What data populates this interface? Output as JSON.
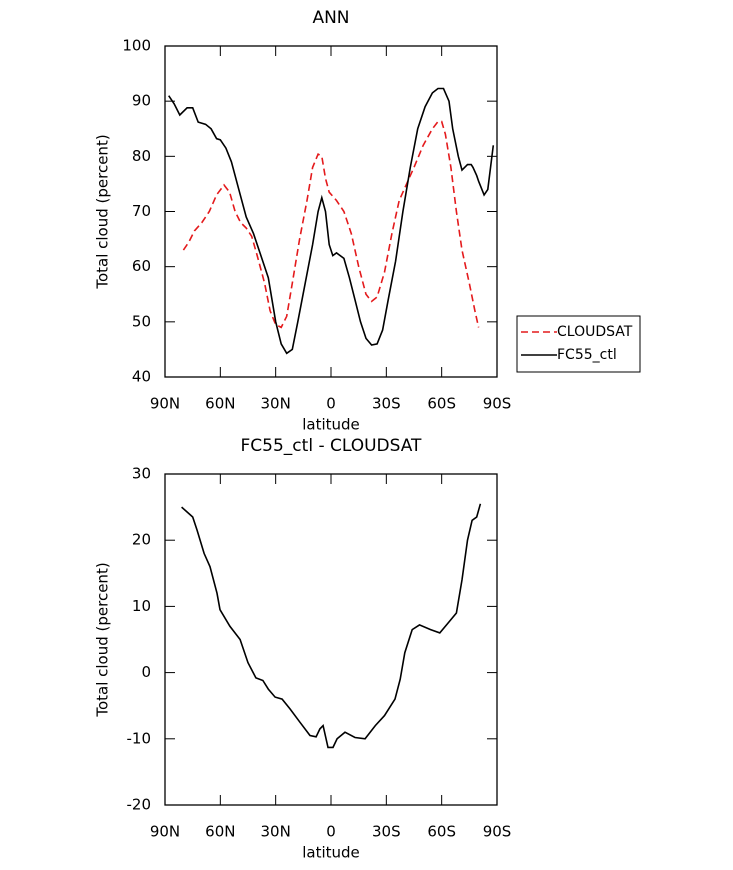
{
  "chart_data": [
    {
      "type": "line",
      "title": "ANN",
      "xlabel": "latitude",
      "ylabel": "Total cloud (percent)",
      "xlim": [
        90,
        -90
      ],
      "xticks": [
        {
          "value": 90,
          "label": "90N"
        },
        {
          "value": 60,
          "label": "60N"
        },
        {
          "value": 30,
          "label": "30N"
        },
        0,
        {
          "value": -30,
          "label": "30S"
        },
        {
          "value": -60,
          "label": "60S"
        },
        {
          "value": -90,
          "label": "90S"
        }
      ],
      "ylim": [
        40,
        100
      ],
      "yticks": [
        40,
        50,
        60,
        70,
        80,
        90,
        100
      ],
      "legend": "outside right",
      "series": [
        {
          "name": "CLOUDSAT",
          "color": "#e41a1c",
          "style": "dashed",
          "x": [
            80,
            77,
            74,
            70,
            66,
            62,
            58,
            55,
            52,
            49,
            46,
            43,
            40,
            36,
            33,
            30,
            27,
            24,
            21,
            17,
            13,
            10,
            7,
            5,
            3,
            1,
            -3,
            -7,
            -11,
            -15,
            -19,
            -22,
            -25,
            -29,
            -33,
            -37,
            -41,
            -45,
            -50,
            -55,
            -58,
            -60,
            -62,
            -65,
            -68,
            -71,
            -75,
            -78,
            -80
          ],
          "values": [
            63,
            64.5,
            66.5,
            68,
            70,
            73,
            74.8,
            73.5,
            70,
            68,
            67,
            65.5,
            62,
            57,
            52,
            49.5,
            49,
            51,
            57,
            65,
            72,
            78,
            80.4,
            80,
            76,
            73.5,
            72,
            70,
            66,
            60,
            55,
            53.7,
            54.5,
            59,
            66,
            72,
            75,
            78,
            82,
            85,
            86.3,
            86.3,
            84,
            78,
            70,
            63,
            57,
            52,
            49
          ]
        },
        {
          "name": "FC55_ctl",
          "color": "#000000",
          "style": "solid",
          "x": [
            88,
            85,
            82,
            78,
            75,
            72,
            68,
            65,
            62,
            60,
            57,
            54,
            50,
            46,
            42,
            38,
            34,
            30,
            27,
            24,
            21,
            18,
            14,
            10,
            7,
            5,
            3,
            1,
            -1,
            -3,
            -7,
            -10,
            -13,
            -16,
            -19,
            -22,
            -25,
            -28,
            -31,
            -35,
            -39,
            -43,
            -47,
            -51,
            -55,
            -58,
            -61,
            -64,
            -66,
            -69,
            -71,
            -74,
            -76,
            -77,
            -79,
            -80,
            -83,
            -85,
            -88
          ],
          "values": [
            91,
            89.5,
            87.5,
            88.8,
            88.8,
            86.2,
            85.8,
            85,
            83.2,
            83,
            81.5,
            79,
            74,
            69,
            66,
            62,
            58,
            50,
            46,
            44.3,
            45,
            50,
            57,
            64,
            70,
            72.5,
            70,
            64,
            62,
            62.5,
            61.5,
            58,
            54,
            50,
            47,
            45.8,
            46,
            48.5,
            54,
            61,
            70,
            78,
            85,
            89,
            91.5,
            92.3,
            92.3,
            90,
            85,
            80,
            77.5,
            78.5,
            78.5,
            78,
            76.5,
            75.5,
            73,
            74,
            82
          ]
        }
      ]
    },
    {
      "type": "line",
      "title": "FC55_ctl - CLOUDSAT",
      "xlabel": "latitude",
      "ylabel": "Total cloud (percent)",
      "xlim": [
        90,
        -90
      ],
      "xticks": [
        {
          "value": 90,
          "label": "90N"
        },
        {
          "value": 60,
          "label": "60N"
        },
        {
          "value": 30,
          "label": "30N"
        },
        0,
        {
          "value": -30,
          "label": "30S"
        },
        {
          "value": -60,
          "label": "60S"
        },
        {
          "value": -90,
          "label": "90S"
        }
      ],
      "ylim": [
        -20,
        30
      ],
      "yticks": [
        -20,
        -10,
        0,
        10,
        20,
        30
      ],
      "series": [
        {
          "color": "#000000",
          "style": "solid",
          "x": [
            81,
            75,
            72.6,
            68.8,
            65.6,
            61.8,
            60.2,
            54.8,
            49.3,
            45,
            40.7,
            36.9,
            34,
            30.3,
            26.5,
            22.2,
            16.8,
            11.4,
            8.1,
            6,
            4.3,
            1.6,
            -1.1,
            -3.3,
            -7.6,
            -13,
            -18.5,
            -24,
            -29,
            -34.7,
            -37.5,
            -40,
            -44,
            -48,
            -54,
            -59,
            -63.5,
            -68,
            -71,
            -74,
            -76.5,
            -79,
            -81
          ],
          "values": [
            25,
            23.5,
            21.5,
            18,
            16,
            12,
            9.5,
            7,
            5,
            1.5,
            -0.8,
            -1.2,
            -2.5,
            -3.7,
            -4,
            -5.5,
            -7.5,
            -9.5,
            -9.7,
            -8.5,
            -8,
            -11.3,
            -11.3,
            -10,
            -9,
            -9.8,
            -10,
            -8,
            -6.5,
            -4,
            -1,
            3,
            6.5,
            7.2,
            6.5,
            6,
            7.5,
            9,
            14,
            20,
            23,
            23.5,
            25.5
          ]
        }
      ]
    }
  ]
}
